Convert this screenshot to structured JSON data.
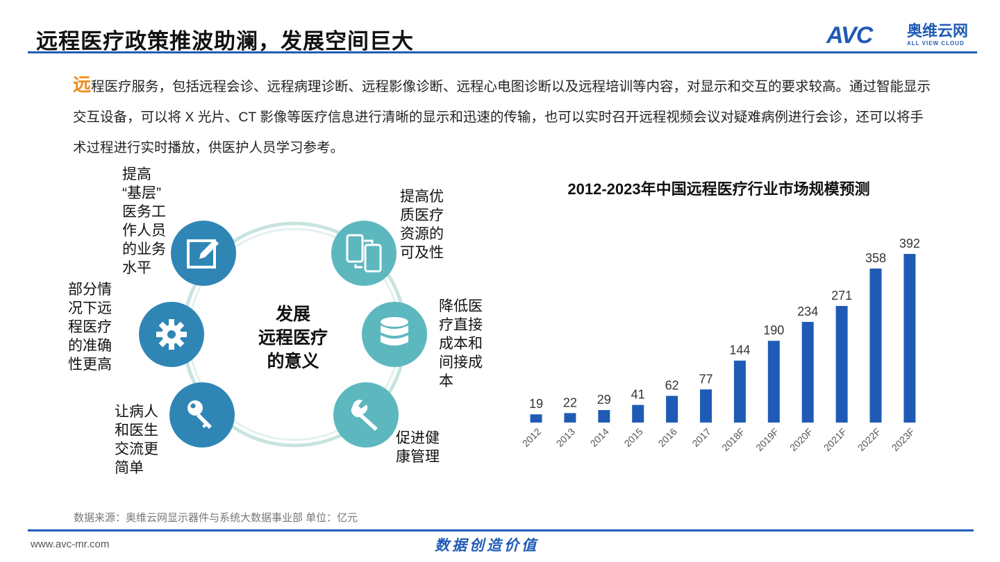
{
  "header": {
    "title": "远程医疗政策推波助澜，发展空间巨大",
    "logo_mark": "AVC",
    "logo_cn": "奥维云网",
    "logo_en": "ALL VIEW CLOUD"
  },
  "intro": {
    "first_char": "远",
    "text": "程医疗服务，包括远程会诊、远程病理诊断、远程影像诊断、远程心电图诊断以及远程培训等内容，对显示和交互的要求较高。通过智能显示交互设备，可以将 X 光片、CT 影像等医疗信息进行清晰的显示和迅速的传输，也可以实时召开远程视频会议对疑难病例进行会诊，还可以将手术过程进行实时播放，供医护人员学习参考。"
  },
  "diagram": {
    "center": [
      "发展",
      "远程医疗",
      "的意义"
    ],
    "items": [
      {
        "lines": [
          "提高",
          "“基层”",
          "医务工",
          "作人员",
          "的业务",
          "水平"
        ],
        "icon": "edit-icon"
      },
      {
        "lines": [
          "提高优",
          "质医疗",
          "资源的",
          "可及性"
        ],
        "icon": "mobile-devices-icon"
      },
      {
        "lines": [
          "降低医",
          "疗直接",
          "成本和",
          "间接成",
          "本"
        ],
        "icon": "database-icon"
      },
      {
        "lines": [
          "促进健",
          "康管理"
        ],
        "icon": "wrench-icon"
      },
      {
        "lines": [
          "让病人",
          "和医生",
          "交流更",
          "简单"
        ],
        "icon": "key-icon"
      },
      {
        "lines": [
          "部分情",
          "况下远",
          "程医疗",
          "的准确",
          "性更高"
        ],
        "icon": "gear-icon"
      }
    ],
    "colors": {
      "blue": "#2f86b5",
      "teal": "#5db7bf",
      "ring": "#bfe0dc"
    }
  },
  "chart_data": {
    "type": "bar",
    "title": "2012-2023年中国远程医疗行业市场规模预测",
    "categories": [
      "2012",
      "2013",
      "2014",
      "2015",
      "2016",
      "2017",
      "2018F",
      "2019F",
      "2020F",
      "2021F",
      "2022F",
      "2023F"
    ],
    "values": [
      19,
      22,
      29,
      41,
      62,
      77,
      144,
      190,
      234,
      271,
      358,
      392
    ],
    "ylim": [
      0,
      400
    ],
    "color": "#1f5bb5",
    "grid": false,
    "legend": "none"
  },
  "footer": {
    "source": "数据来源：奥维云网显示器件与系统大数据事业部  单位：亿元",
    "url": "www.avc-mr.com",
    "slogan": "数据创造价值"
  }
}
